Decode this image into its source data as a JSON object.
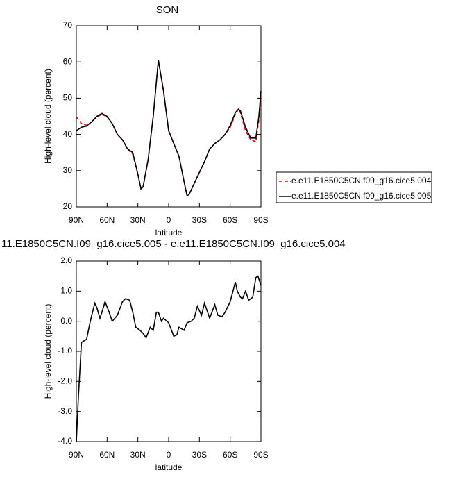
{
  "chart_data": [
    {
      "type": "line",
      "title": "SON",
      "xlabel": "latitude",
      "ylabel": "High-level cloud (percent)",
      "x": [
        90,
        85,
        80,
        75,
        70,
        65,
        60,
        55,
        50,
        45,
        40,
        35,
        30,
        27,
        25,
        20,
        15,
        10,
        5,
        0,
        -5,
        -10,
        -15,
        -18,
        -20,
        -25,
        -30,
        -35,
        -40,
        -45,
        -50,
        -55,
        -60,
        -65,
        -68,
        -70,
        -75,
        -80,
        -85,
        -88,
        -90
      ],
      "series": [
        {
          "name": "e.e11.E1850C5CN.f09_g16.cice5.004",
          "color": "#e00000",
          "dashed": true,
          "values": [
            44.8,
            43,
            42.5,
            43.5,
            44.8,
            45.6,
            44.8,
            43,
            40,
            38.5,
            36,
            34.5,
            29,
            25,
            25.5,
            33,
            45,
            60.5,
            52,
            41,
            37.5,
            34,
            27,
            23,
            23.5,
            26.5,
            29.5,
            32.5,
            36,
            37.5,
            38.5,
            40,
            42,
            45.5,
            47,
            46,
            41,
            38.5,
            38,
            44,
            50
          ]
        },
        {
          "name": "e.e11.E1850C5CN.f09_g16.cice5.005",
          "color": "#000000",
          "values": [
            41,
            42,
            42.3,
            43.5,
            45,
            45.8,
            45,
            43,
            40,
            38.5,
            36,
            35,
            29,
            25,
            25.5,
            33,
            45,
            60.5,
            52,
            41,
            37.5,
            34,
            27,
            23,
            23.5,
            26.5,
            29.5,
            32.5,
            36,
            37.5,
            38.5,
            40,
            42.5,
            46,
            47,
            46.5,
            42,
            39,
            39,
            45,
            52
          ]
        }
      ],
      "xlim": [
        90,
        -90
      ],
      "xticks": [
        {
          "value": 90,
          "label": "90N"
        },
        {
          "value": 60,
          "label": "60N"
        },
        {
          "value": 30,
          "label": "30N"
        },
        0,
        {
          "value": -30,
          "label": "30S"
        },
        {
          "value": -60,
          "label": "60S"
        },
        {
          "value": -90,
          "label": "90S"
        }
      ],
      "ylim": [
        20,
        70
      ],
      "yticks": [
        20,
        30,
        40,
        50,
        60,
        70
      ]
    },
    {
      "type": "line",
      "title": "11.E1850C5CN.f09_g16.cice5.005 - e.e11.E1850C5CN.f09_g16.cice5.004",
      "xlabel": "latitude",
      "ylabel": "High-level cloud (percent)",
      "x": [
        90,
        88,
        85,
        80,
        77,
        75,
        72,
        70,
        67,
        65,
        62,
        58,
        55,
        50,
        45,
        42,
        38,
        35,
        32,
        28,
        25,
        22,
        18,
        15,
        12,
        10,
        7,
        5,
        0,
        -5,
        -8,
        -10,
        -15,
        -18,
        -22,
        -25,
        -28,
        -32,
        -35,
        -40,
        -45,
        -48,
        -52,
        -55,
        -60,
        -65,
        -67,
        -70,
        -72,
        -75,
        -78,
        -82,
        -85,
        -87,
        -90
      ],
      "values": [
        -4.0,
        -2.5,
        -0.7,
        -0.6,
        -0.1,
        0.2,
        0.6,
        0.45,
        0.1,
        0.3,
        0.65,
        0.3,
        0.0,
        0.2,
        0.65,
        0.75,
        0.7,
        0.3,
        -0.2,
        -0.3,
        -0.4,
        -0.55,
        -0.2,
        -0.3,
        0.3,
        0.3,
        0.0,
        0.1,
        -0.05,
        -0.5,
        -0.45,
        -0.2,
        -0.3,
        -0.05,
        0.0,
        0.1,
        0.5,
        0.2,
        0.6,
        0.1,
        0.55,
        0.2,
        0.15,
        0.3,
        0.65,
        1.3,
        1.0,
        0.8,
        0.75,
        1.0,
        0.7,
        0.8,
        1.45,
        1.5,
        1.2
      ],
      "color": "#000000",
      "xlim": [
        90,
        -90
      ],
      "xticks": [
        {
          "value": 90,
          "label": "90N"
        },
        {
          "value": 60,
          "label": "60N"
        },
        {
          "value": 30,
          "label": "30N"
        },
        0,
        {
          "value": -30,
          "label": "30S"
        },
        {
          "value": -60,
          "label": "60S"
        },
        {
          "value": -90,
          "label": "90S"
        }
      ],
      "ylim": [
        -4,
        2
      ],
      "yticks": [
        {
          "value": 2,
          "label": "2.0"
        },
        {
          "value": 1,
          "label": "1.0"
        },
        {
          "value": 0,
          "label": "0.0"
        },
        {
          "value": -1,
          "label": "-1.0"
        },
        {
          "value": -2,
          "label": "-2.0"
        },
        {
          "value": -3,
          "label": "-3.0"
        },
        {
          "value": -4,
          "label": "-4.0"
        }
      ]
    }
  ]
}
